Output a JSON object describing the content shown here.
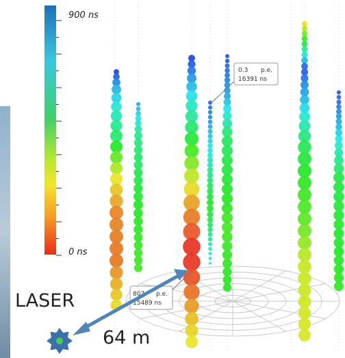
{
  "colorbar": {
    "max_label": "900 ns",
    "min_label": "0 ns"
  },
  "callouts": [
    {
      "value": "0.3",
      "unit": "p.e.",
      "time": "16391 ns"
    },
    {
      "value": "807",
      "unit": "p.e.",
      "time": "15489 ns"
    }
  ],
  "annotations": {
    "source": "LASER",
    "distance": "64 m"
  }
}
